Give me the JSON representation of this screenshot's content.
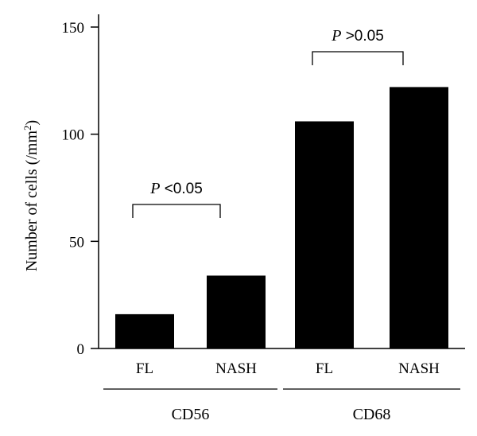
{
  "chart_data": {
    "type": "bar",
    "ylabel": "Number of cells (/mm",
    "ylabel_superscript": "2",
    "ylabel_close": ")",
    "ylim": [
      0,
      150
    ],
    "yticks": [
      0,
      50,
      100,
      150
    ],
    "categories": [
      "FL",
      "NASH",
      "FL",
      "NASH"
    ],
    "values": [
      16,
      34,
      106,
      122
    ],
    "groups": [
      {
        "label": "CD56",
        "categories": [
          0,
          1
        ]
      },
      {
        "label": "CD68",
        "categories": [
          2,
          3
        ]
      }
    ],
    "annotations": [
      {
        "p": "P",
        "text": " <0.05",
        "between": [
          0,
          1
        ]
      },
      {
        "p": "P",
        "text": " >0.05",
        "between": [
          2,
          3
        ]
      }
    ],
    "bar_color": "#000000",
    "grid": false,
    "legend": "none"
  }
}
